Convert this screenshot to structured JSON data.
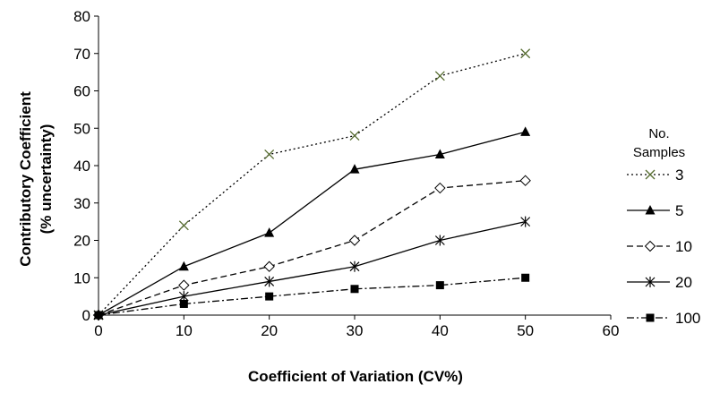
{
  "chart_data": {
    "type": "line",
    "xlabel": "Coefficient of Variation (CV%)",
    "ylabel_lines": [
      "Contributory Coefficient",
      "(% uncertainty)"
    ],
    "xlim": [
      0,
      60
    ],
    "ylim": [
      0,
      80
    ],
    "xticks": [
      0,
      10,
      20,
      30,
      40,
      50,
      60
    ],
    "yticks": [
      0,
      10,
      20,
      30,
      40,
      50,
      60,
      70,
      80
    ],
    "grid": false,
    "legend_position": "right",
    "legend_title_lines": [
      "No.",
      "Samples"
    ],
    "x": [
      0,
      10,
      20,
      30,
      40,
      50
    ],
    "series": [
      {
        "name": "3",
        "values": [
          0,
          24,
          43,
          48,
          64,
          70
        ],
        "marker": "x",
        "dash": "dotted",
        "color": "#556b2f"
      },
      {
        "name": "5",
        "values": [
          0,
          13,
          22,
          39,
          43,
          49
        ],
        "marker": "triangle",
        "dash": "solid",
        "color": "#000000"
      },
      {
        "name": "10",
        "values": [
          0,
          8,
          13,
          20,
          34,
          36
        ],
        "marker": "diamond",
        "dash": "dashed",
        "color": "#000000"
      },
      {
        "name": "20",
        "values": [
          0,
          5,
          9,
          13,
          20,
          25
        ],
        "marker": "asterisk",
        "dash": "solid",
        "color": "#000000"
      },
      {
        "name": "100",
        "values": [
          0,
          3,
          5,
          7,
          8,
          10
        ],
        "marker": "square",
        "dash": "dashdot",
        "color": "#000000"
      }
    ]
  }
}
